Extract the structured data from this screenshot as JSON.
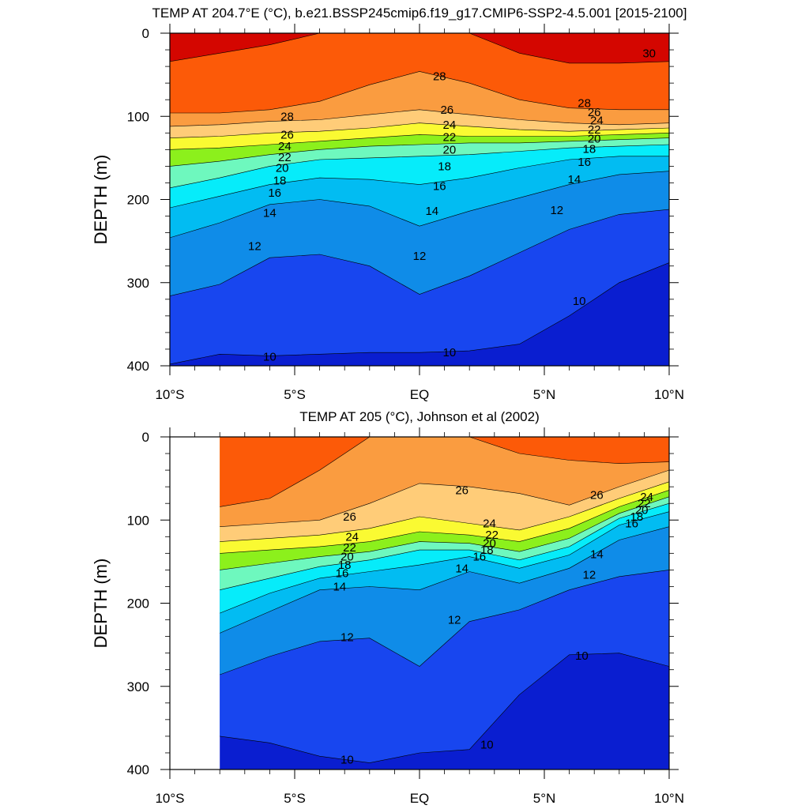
{
  "chart_data": [
    {
      "type": "heatmap",
      "subtype": "filled-contour",
      "title": "TEMP AT 204.7°E (°C), b.e21.BSSP245cmip6.f19_g17.CMIP6-SSP2-4.5.001 [2015-2100]",
      "xlabel": "",
      "ylabel": "DEPTH (m)",
      "xlim": [
        -10,
        10
      ],
      "ylim": [
        400,
        0
      ],
      "x_ticks": [
        -10,
        -5,
        0,
        5,
        10
      ],
      "x_tick_labels": [
        "10°S",
        "5°S",
        "EQ",
        "5°N",
        "10°N"
      ],
      "y_ticks": [
        0,
        100,
        200,
        300,
        400
      ],
      "y_tick_labels": [
        "0",
        "100",
        "200",
        "300",
        "400"
      ],
      "data_x_range": [
        -10,
        10
      ],
      "x": [
        -10,
        -8,
        -6,
        -4,
        -2,
        0,
        2,
        4,
        6,
        8,
        10
      ],
      "depth_isotherms": {
        "30": [
          34,
          24,
          14,
          0,
          0,
          0,
          0,
          24,
          36,
          36,
          34
        ],
        "28": [
          96,
          96,
          92,
          82,
          62,
          46,
          60,
          80,
          90,
          92,
          92
        ],
        "26": [
          112,
          110,
          106,
          104,
          98,
          92,
          98,
          104,
          108,
          110,
          108
        ],
        "24": [
          126,
          124,
          120,
          118,
          114,
          108,
          112,
          116,
          118,
          116,
          114
        ],
        "22": [
          140,
          138,
          134,
          130,
          126,
          122,
          124,
          124,
          124,
          122,
          120
        ],
        "20": [
          160,
          154,
          146,
          140,
          136,
          134,
          132,
          132,
          130,
          128,
          126
        ],
        "18": [
          186,
          174,
          160,
          152,
          150,
          148,
          146,
          142,
          138,
          136,
          134
        ],
        "16": [
          210,
          196,
          182,
          174,
          176,
          182,
          174,
          162,
          152,
          148,
          148
        ],
        "14": [
          246,
          228,
          206,
          200,
          208,
          232,
          214,
          198,
          182,
          170,
          166
        ],
        "12": [
          316,
          302,
          270,
          266,
          280,
          314,
          292,
          264,
          236,
          218,
          212
        ],
        "10": [
          398,
          386,
          388,
          386,
          384,
          384,
          382,
          374,
          340,
          300,
          276
        ]
      },
      "contour_labels": [
        {
          "x": -5.3,
          "z": 100,
          "text": "28"
        },
        {
          "x": -5.3,
          "z": 122,
          "text": "26"
        },
        {
          "x": -5.4,
          "z": 136,
          "text": "24"
        },
        {
          "x": -5.4,
          "z": 149,
          "text": "22"
        },
        {
          "x": -5.5,
          "z": 162,
          "text": "20"
        },
        {
          "x": -5.6,
          "z": 177,
          "text": "18"
        },
        {
          "x": -5.8,
          "z": 192,
          "text": "16"
        },
        {
          "x": -6.0,
          "z": 216,
          "text": "14"
        },
        {
          "x": -6.6,
          "z": 256,
          "text": "12"
        },
        {
          "x": -6.0,
          "z": 389,
          "text": "10"
        },
        {
          "x": 0.8,
          "z": 52,
          "text": "28"
        },
        {
          "x": 1.1,
          "z": 92,
          "text": "26"
        },
        {
          "x": 1.2,
          "z": 110,
          "text": "24"
        },
        {
          "x": 1.2,
          "z": 125,
          "text": "22"
        },
        {
          "x": 1.2,
          "z": 140,
          "text": "20"
        },
        {
          "x": 1.0,
          "z": 160,
          "text": "18"
        },
        {
          "x": 0.8,
          "z": 184,
          "text": "16"
        },
        {
          "x": 0.5,
          "z": 214,
          "text": "14"
        },
        {
          "x": 0.0,
          "z": 268,
          "text": "12"
        },
        {
          "x": 1.2,
          "z": 384,
          "text": "10"
        },
        {
          "x": 9.2,
          "z": 24,
          "text": "30"
        },
        {
          "x": 6.6,
          "z": 84,
          "text": "28"
        },
        {
          "x": 7.0,
          "z": 95,
          "text": "26"
        },
        {
          "x": 7.1,
          "z": 105,
          "text": "24"
        },
        {
          "x": 7.0,
          "z": 116,
          "text": "22"
        },
        {
          "x": 7.0,
          "z": 127,
          "text": "20"
        },
        {
          "x": 6.8,
          "z": 139,
          "text": "18"
        },
        {
          "x": 6.6,
          "z": 155,
          "text": "16"
        },
        {
          "x": 6.2,
          "z": 176,
          "text": "14"
        },
        {
          "x": 5.5,
          "z": 213,
          "text": "12"
        },
        {
          "x": 6.4,
          "z": 322,
          "text": "10"
        }
      ]
    },
    {
      "type": "heatmap",
      "subtype": "filled-contour",
      "title": "TEMP AT 205 (°C), Johnson et al (2002)",
      "xlabel": "",
      "ylabel": "DEPTH (m)",
      "xlim": [
        -10,
        10
      ],
      "ylim": [
        400,
        0
      ],
      "x_ticks": [
        -10,
        -5,
        0,
        5,
        10
      ],
      "x_tick_labels": [
        "10°S",
        "5°S",
        "EQ",
        "5°N",
        "10°N"
      ],
      "y_ticks": [
        0,
        100,
        200,
        300,
        400
      ],
      "y_tick_labels": [
        "0",
        "100",
        "200",
        "300",
        "400"
      ],
      "data_x_range": [
        -8,
        10
      ],
      "x": [
        -8,
        -6,
        -4,
        -2,
        0,
        2,
        4,
        6,
        8,
        10
      ],
      "depth_isotherms": {
        "28": [
          84,
          74,
          40,
          0,
          0,
          0,
          20,
          28,
          32,
          30
        ],
        "26": [
          108,
          104,
          100,
          80,
          56,
          60,
          68,
          82,
          60,
          40
        ],
        "24": [
          126,
          122,
          118,
          110,
          96,
          104,
          112,
          96,
          74,
          54
        ],
        "22": [
          140,
          136,
          132,
          126,
          114,
          118,
          126,
          110,
          84,
          64
        ],
        "20": [
          160,
          152,
          144,
          138,
          126,
          128,
          138,
          122,
          92,
          72
        ],
        "18": [
          184,
          170,
          156,
          148,
          136,
          136,
          148,
          132,
          98,
          80
        ],
        "16": [
          212,
          188,
          170,
          162,
          154,
          144,
          158,
          142,
          106,
          90
        ],
        "14": [
          236,
          210,
          184,
          180,
          184,
          162,
          176,
          158,
          124,
          108
        ],
        "12": [
          286,
          264,
          246,
          242,
          276,
          222,
          208,
          184,
          168,
          160
        ],
        "10": [
          360,
          368,
          384,
          392,
          380,
          376,
          310,
          262,
          260,
          276
        ]
      },
      "contour_labels": [
        {
          "x": -2.8,
          "z": 96,
          "text": "26"
        },
        {
          "x": -2.7,
          "z": 120,
          "text": "24"
        },
        {
          "x": -2.8,
          "z": 133,
          "text": "22"
        },
        {
          "x": -2.9,
          "z": 144,
          "text": "20"
        },
        {
          "x": -3.0,
          "z": 154,
          "text": "18"
        },
        {
          "x": -3.1,
          "z": 164,
          "text": "16"
        },
        {
          "x": -3.2,
          "z": 180,
          "text": "14"
        },
        {
          "x": -2.9,
          "z": 241,
          "text": "12"
        },
        {
          "x": -2.9,
          "z": 388,
          "text": "10"
        },
        {
          "x": 1.7,
          "z": 64,
          "text": "26"
        },
        {
          "x": 2.8,
          "z": 104,
          "text": "24"
        },
        {
          "x": 2.9,
          "z": 118,
          "text": "22"
        },
        {
          "x": 2.8,
          "z": 128,
          "text": "20"
        },
        {
          "x": 2.7,
          "z": 136,
          "text": "18"
        },
        {
          "x": 2.4,
          "z": 144,
          "text": "16"
        },
        {
          "x": 1.7,
          "z": 158,
          "text": "14"
        },
        {
          "x": 1.4,
          "z": 220,
          "text": "12"
        },
        {
          "x": 2.7,
          "z": 370,
          "text": "10"
        },
        {
          "x": 7.1,
          "z": 70,
          "text": "26"
        },
        {
          "x": 9.1,
          "z": 72,
          "text": "24"
        },
        {
          "x": 9.0,
          "z": 80,
          "text": "22"
        },
        {
          "x": 8.9,
          "z": 88,
          "text": "20"
        },
        {
          "x": 8.7,
          "z": 96,
          "text": "18"
        },
        {
          "x": 8.5,
          "z": 104,
          "text": "16"
        },
        {
          "x": 7.1,
          "z": 141,
          "text": "14"
        },
        {
          "x": 6.8,
          "z": 166,
          "text": "12"
        },
        {
          "x": 6.5,
          "z": 263,
          "text": "10"
        }
      ]
    }
  ],
  "colormap": [
    "#0a1ed0",
    "#1846ef",
    "#0a6ee6",
    "#0f8ce8",
    "#03a2ea",
    "#02bcf2",
    "#02d4f6",
    "#06ecfa",
    "#3cf4dc",
    "#6ef8be",
    "#12e044",
    "#8cf01c",
    "#d2f812",
    "#fafa32",
    "#ffe058",
    "#ffcc78",
    "#f9b266",
    "#fa9c40",
    "#fa7c08",
    "#fc5a08",
    "#f80e00",
    "#d40600"
  ],
  "colormap_first_level": 9,
  "colormap_step": 1
}
